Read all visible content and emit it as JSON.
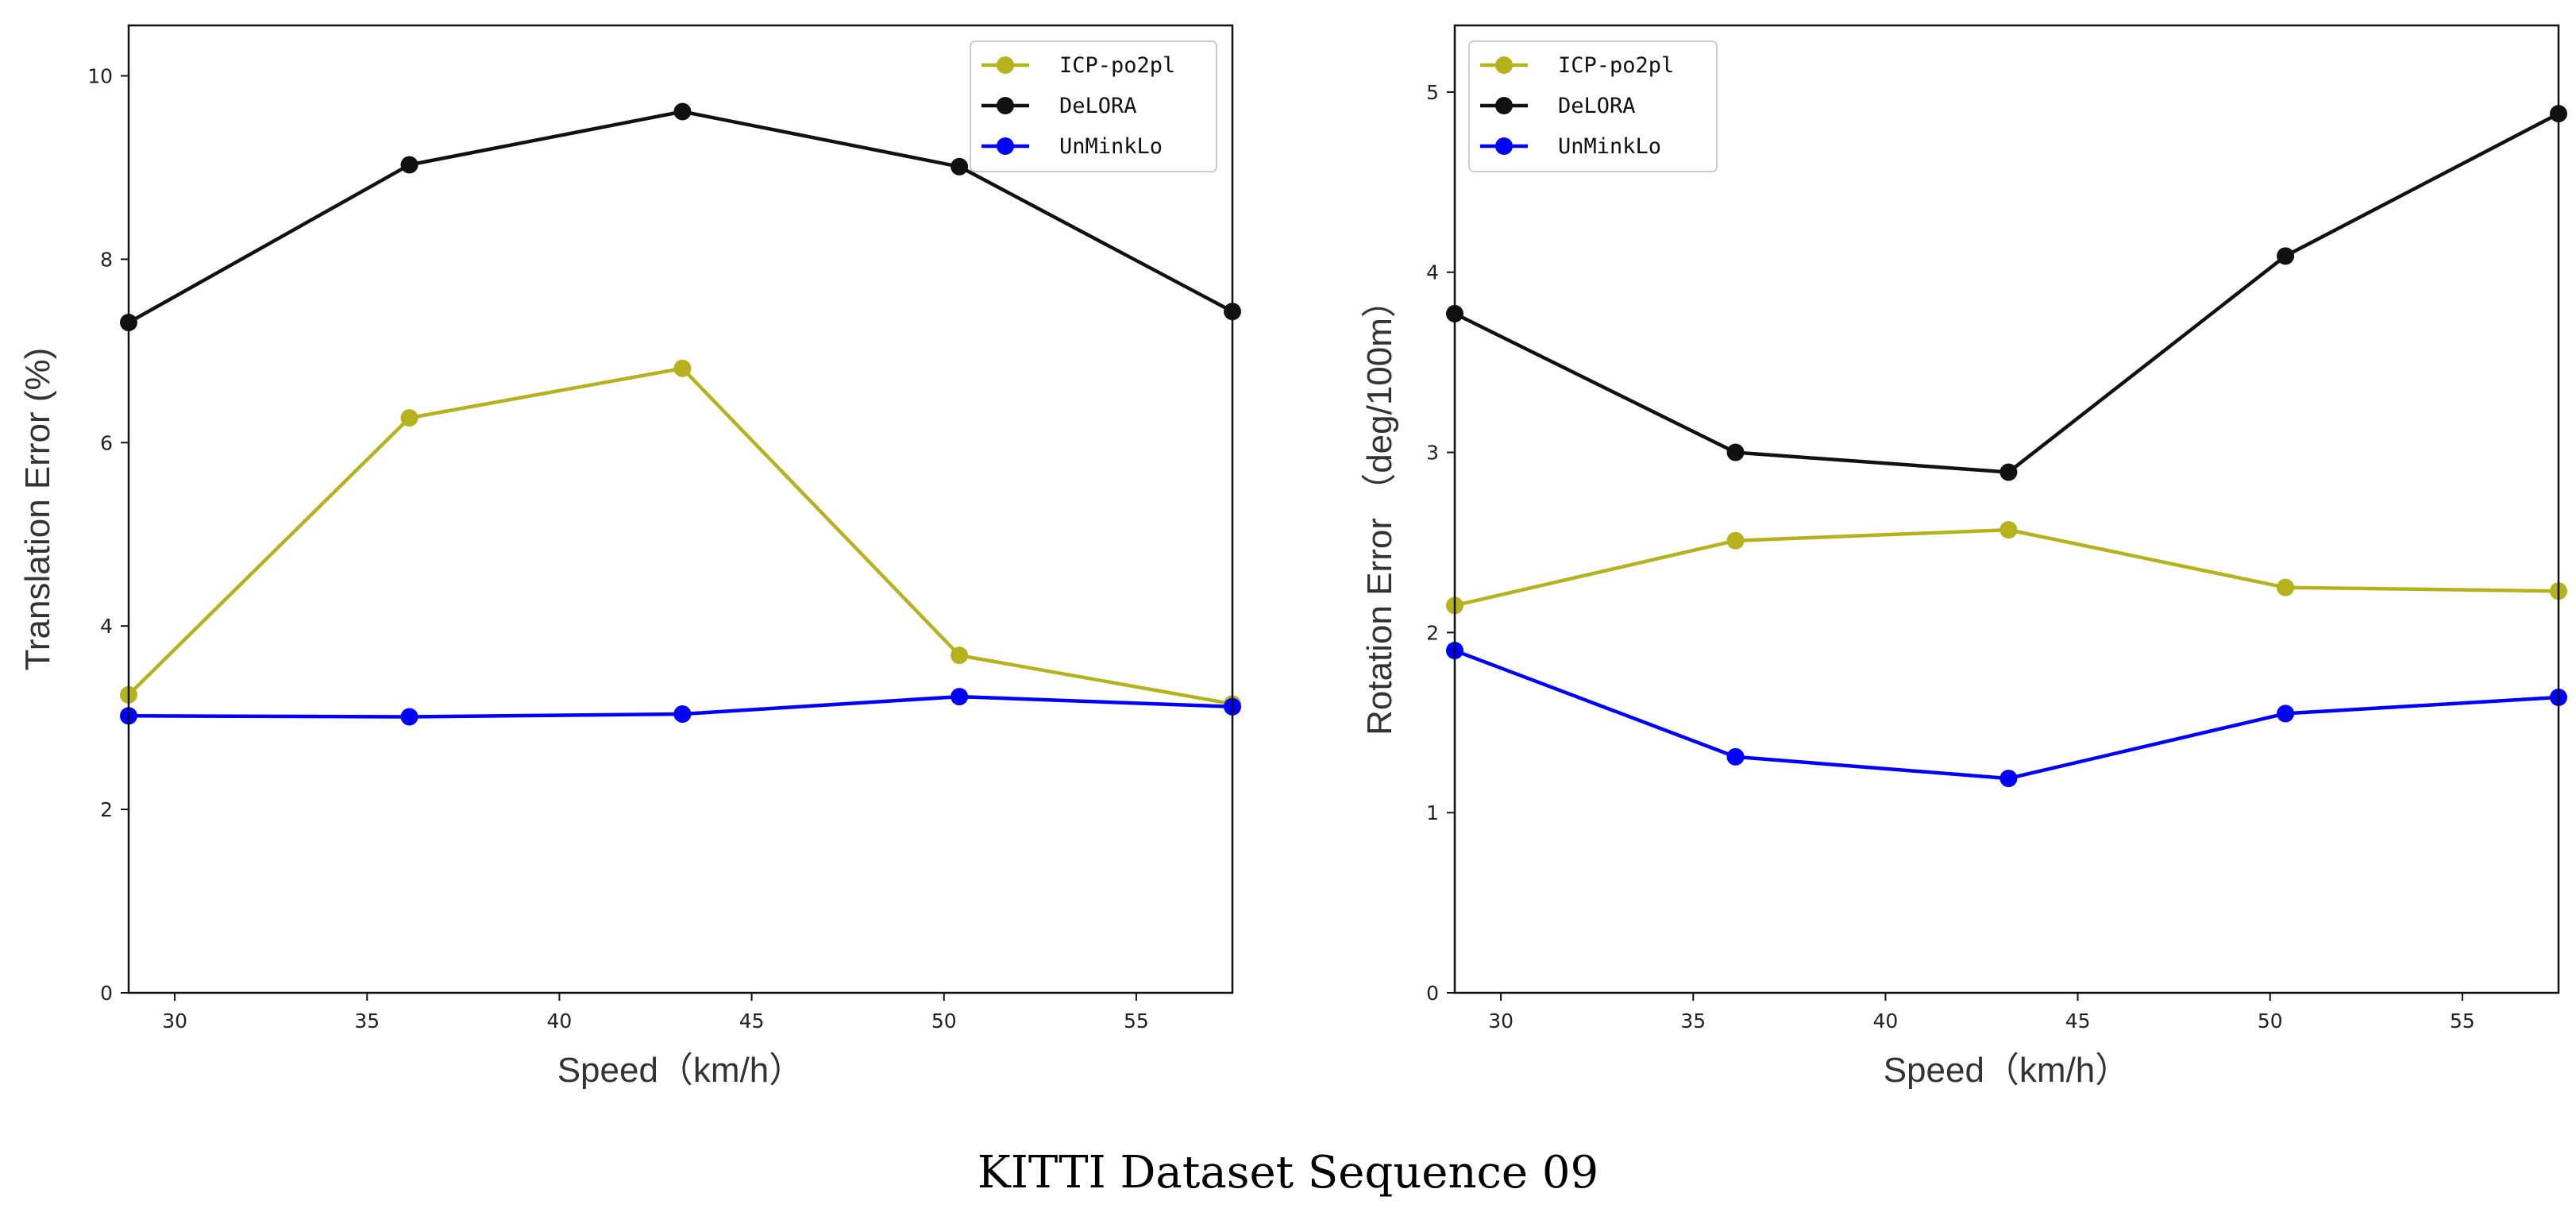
{
  "figure_caption": "KITTI Dataset Sequence 09",
  "chart_data": [
    {
      "type": "line",
      "title": "",
      "xlabel": "Speed（km/h）",
      "ylabel": "Translation Error (%)",
      "xlim": [
        28.8,
        57.5
      ],
      "ylim": [
        0,
        10.55
      ],
      "xticks": [
        30,
        35,
        40,
        45,
        50,
        55
      ],
      "yticks": [
        0,
        2,
        4,
        6,
        8,
        10
      ],
      "grid": false,
      "legend_position": "top-right",
      "x": [
        28.8,
        36.1,
        43.2,
        50.4,
        57.5
      ],
      "series": [
        {
          "name": "ICP-po2pl",
          "color": "#b5b21e",
          "values": [
            3.25,
            6.27,
            6.81,
            3.68,
            3.15
          ]
        },
        {
          "name": "DeLORA",
          "color": "#111111",
          "values": [
            7.31,
            9.03,
            9.61,
            9.01,
            7.43
          ]
        },
        {
          "name": "UnMinkLo",
          "color": "#0000ff",
          "values": [
            3.02,
            3.01,
            3.04,
            3.23,
            3.12
          ]
        }
      ]
    },
    {
      "type": "line",
      "title": "",
      "xlabel": "Speed（km/h）",
      "ylabel": "Rotation Error （deg/100m）",
      "xlim": [
        28.8,
        57.5
      ],
      "ylim": [
        0,
        5.37
      ],
      "xticks": [
        30,
        35,
        40,
        45,
        50,
        55
      ],
      "yticks": [
        0,
        1,
        2,
        3,
        4,
        5
      ],
      "grid": false,
      "legend_position": "top-left",
      "x": [
        28.8,
        36.1,
        43.2,
        50.4,
        57.5
      ],
      "series": [
        {
          "name": "ICP-po2pl",
          "color": "#b5b21e",
          "values": [
            2.15,
            2.51,
            2.57,
            2.25,
            2.23
          ]
        },
        {
          "name": "DeLORA",
          "color": "#111111",
          "values": [
            3.77,
            3.0,
            2.89,
            4.09,
            4.88
          ]
        },
        {
          "name": "UnMinkLo",
          "color": "#0000ff",
          "values": [
            1.9,
            1.31,
            1.19,
            1.55,
            1.64
          ]
        }
      ]
    }
  ]
}
